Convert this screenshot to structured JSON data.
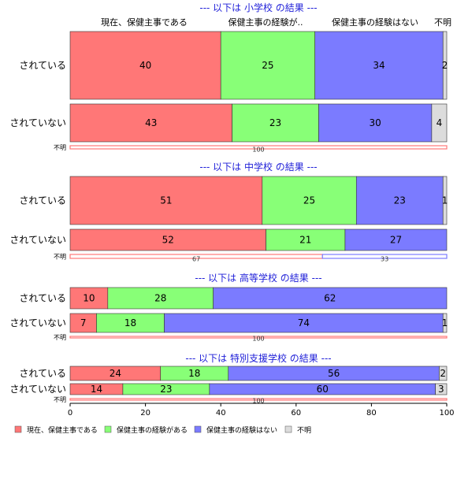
{
  "chart_data": {
    "type": "bar",
    "orientation": "horizontal-stacked-100",
    "column_headers": [
      "現在、保健主事である",
      "保健主事の経験が..",
      "保健主事の経験はない",
      "不明"
    ],
    "legend": {
      "placement": "bottom-left",
      "entries": [
        "現在、保健主事である",
        "保健主事の経験がある",
        "保健主事の経験はない",
        "不明"
      ]
    },
    "series_colors": [
      "#ff7777",
      "#88ff77",
      "#7b7bff",
      "#dcdcdc"
    ],
    "x_ticks": [
      "0",
      "20",
      "40",
      "60",
      "80",
      "100"
    ],
    "xlim": [
      0,
      100
    ],
    "groups": [
      {
        "title": "--- 以下は 小学校 の結果 ---",
        "rows": [
          {
            "label": "されている",
            "values": [
              40,
              25,
              34,
              2
            ],
            "labels": [
              "40",
              "25",
              "34",
              "2"
            ]
          },
          {
            "label": "されていない",
            "values": [
              43,
              23,
              30,
              4
            ],
            "labels": [
              "43",
              "23",
              "30",
              "4"
            ]
          },
          {
            "label": "不明",
            "values": [
              100,
              0,
              0,
              0
            ],
            "labels": [
              "100",
              "",
              "",
              ""
            ]
          }
        ]
      },
      {
        "title": "--- 以下は 中学校 の結果 ---",
        "rows": [
          {
            "label": "されている",
            "values": [
              51,
              25,
              23,
              1
            ],
            "labels": [
              "51",
              "25",
              "23",
              "1"
            ]
          },
          {
            "label": "されていない",
            "values": [
              52,
              21,
              27,
              0
            ],
            "labels": [
              "52",
              "21",
              "27",
              ""
            ]
          },
          {
            "label": "不明",
            "values": [
              67,
              0,
              33,
              0
            ],
            "labels": [
              "67",
              "",
              "33",
              ""
            ]
          }
        ]
      },
      {
        "title": "--- 以下は 高等学校 の結果 ---",
        "rows": [
          {
            "label": "されている",
            "values": [
              10,
              28,
              62,
              0.5
            ],
            "labels": [
              "10",
              "28",
              "62",
              ""
            ]
          },
          {
            "label": "されていない",
            "values": [
              7,
              18,
              74,
              1
            ],
            "labels": [
              "7",
              "18",
              "74",
              "1"
            ]
          },
          {
            "label": "不明",
            "values": [
              100,
              0,
              0,
              0
            ],
            "labels": [
              "100",
              "",
              "",
              ""
            ]
          }
        ]
      },
      {
        "title": "--- 以下は 特別支援学校 の結果 ---",
        "rows": [
          {
            "label": "されている",
            "values": [
              24,
              18,
              56,
              2
            ],
            "labels": [
              "24",
              "18",
              "56",
              "2"
            ]
          },
          {
            "label": "されていない",
            "values": [
              14,
              23,
              60,
              3
            ],
            "labels": [
              "14",
              "23",
              "60",
              "3"
            ]
          },
          {
            "label": "不明",
            "values": [
              100,
              0,
              0,
              0
            ],
            "labels": [
              "100",
              "",
              "",
              ""
            ]
          }
        ]
      }
    ]
  }
}
